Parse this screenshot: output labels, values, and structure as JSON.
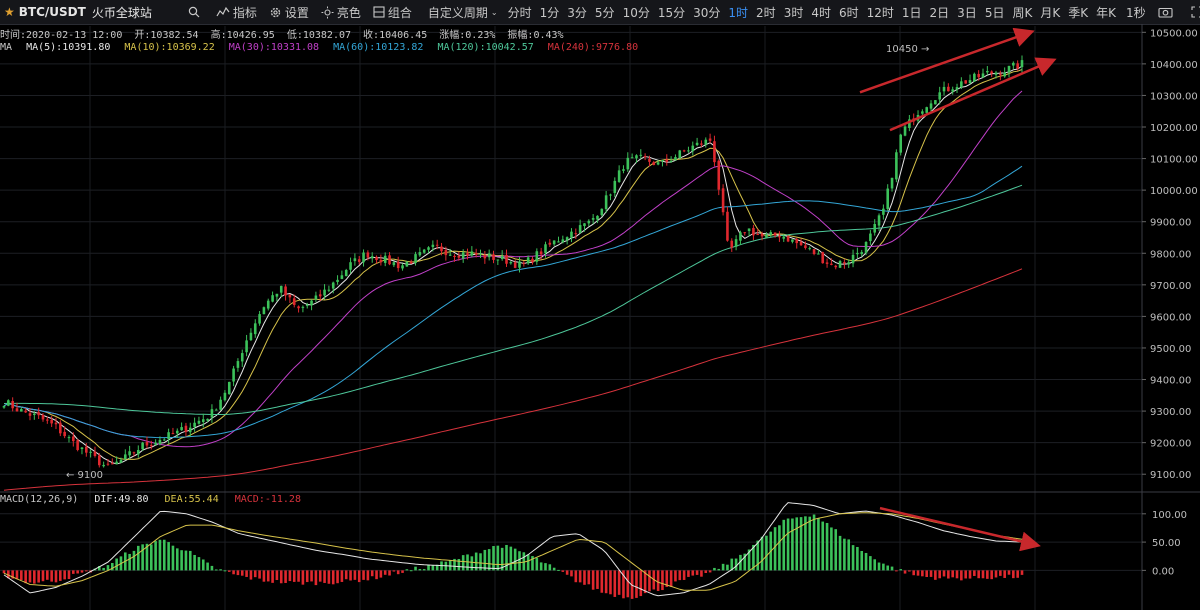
{
  "toolbar": {
    "symbol": "BTC/USDT",
    "exchange": "火币全球站",
    "indicators": "指标",
    "settings": "设置",
    "theme": "亮色",
    "combo": "组合",
    "custom_period": "自定义周期",
    "periods": [
      "分时",
      "1分",
      "3分",
      "5分",
      "10分",
      "15分",
      "30分",
      "1时",
      "2时",
      "3时",
      "4时",
      "6时",
      "12时",
      "1日",
      "2日",
      "3日",
      "5日",
      "周K",
      "月K",
      "季K",
      "年K"
    ],
    "active_period": "1时",
    "right_label": "1秒"
  },
  "ohlc": {
    "time": "时间:2020-02-13 12:00",
    "open": "开:10382.54",
    "high": "高:10426.95",
    "low": "低:10382.07",
    "close": "收:10406.45",
    "change": "涨幅:0.23%",
    "amplitude": "振幅:0.43%"
  },
  "ma_legend": {
    "prefix": "MA",
    "ma5": "MA(5):10391.80",
    "ma10": "MA(10):10369.22",
    "ma30": "MA(30):10331.08",
    "ma60": "MA(60):10123.82",
    "ma120": "MA(120):10042.57",
    "ma240": "MA(240):9776.80"
  },
  "macd_legend": {
    "name": "MACD(12,26,9)",
    "dif": "DIF:49.80",
    "dea": "DEA:55.44",
    "macd": "MACD:-11.28"
  },
  "colors": {
    "up": "#3cc15a",
    "down": "#e0282e",
    "ma5": "#e6e6e6",
    "ma10": "#d6c24a",
    "ma30": "#c040c8",
    "ma60": "#33a6d6",
    "ma120": "#4ec79a",
    "ma240": "#d6333c",
    "dif": "#e6e6e6",
    "dea": "#d6c24a",
    "arrow": "#c8282c"
  },
  "chart_data": [
    {
      "type": "candlestick",
      "title": "BTC/USDT",
      "x": "hourly candles",
      "ylim": [
        9050,
        10520
      ],
      "y_ticks": [
        9100,
        9200,
        9300,
        9400,
        9500,
        9600,
        9700,
        9800,
        9900,
        10000,
        10100,
        10200,
        10300,
        10400,
        10500
      ],
      "y_tick_labels": [
        "9100.00",
        "9200.00",
        "9300.00",
        "9400.00",
        "9500.00",
        "9600.00",
        "9700.00",
        "9800.00",
        "9900.00",
        "10000.00",
        "10100.00",
        "10200.00",
        "10300.00",
        "10400.00",
        "10500.00"
      ],
      "close_path": [
        9330,
        9300,
        9280,
        9250,
        9200,
        9160,
        9120,
        9150,
        9190,
        9210,
        9230,
        9260,
        9290,
        9380,
        9520,
        9630,
        9690,
        9620,
        9650,
        9700,
        9760,
        9800,
        9780,
        9760,
        9790,
        9820,
        9800,
        9800,
        9790,
        9780,
        9760,
        9800,
        9840,
        9870,
        9900,
        9980,
        10090,
        10100,
        10080,
        10110,
        10140,
        10160,
        9800,
        9880,
        9850,
        9860,
        9830,
        9800,
        9760,
        9780,
        9830,
        9940,
        10180,
        10250,
        10300,
        10330,
        10350,
        10370,
        10380,
        10400
      ],
      "annotations": [
        "10450",
        "9100"
      ],
      "grid": true
    },
    {
      "type": "bar",
      "title": "MACD(12,26,9)",
      "ylim": [
        -70,
        135
      ],
      "y_ticks": [
        0,
        50,
        100
      ],
      "y_tick_labels": [
        "0.00",
        "50.00",
        "100.00"
      ],
      "macd_path": [
        -8,
        -22,
        -18,
        -5,
        10,
        38,
        55,
        35,
        5,
        -10,
        -18,
        -22,
        -22,
        -20,
        -15,
        -5,
        5,
        15,
        30,
        45,
        30,
        5,
        -20,
        -40,
        -48,
        -35,
        -18,
        -5,
        20,
        55,
        90,
        100,
        65,
        30,
        5,
        -10,
        -14,
        -14,
        -12,
        -11
      ],
      "dif_path": [
        -8,
        -40,
        -30,
        -10,
        15,
        60,
        105,
        100,
        85,
        65,
        55,
        45,
        35,
        28,
        20,
        15,
        10,
        8,
        5,
        3,
        25,
        60,
        65,
        35,
        -25,
        -45,
        -40,
        -25,
        5,
        55,
        120,
        115,
        100,
        105,
        98,
        85,
        70,
        60,
        52,
        50
      ],
      "dea_path": [
        -5,
        -25,
        -28,
        -18,
        0,
        25,
        60,
        80,
        80,
        70,
        62,
        55,
        48,
        40,
        33,
        27,
        22,
        18,
        14,
        10,
        15,
        35,
        55,
        50,
        15,
        -20,
        -35,
        -35,
        -20,
        15,
        65,
        90,
        100,
        102,
        100,
        92,
        82,
        72,
        62,
        55
      ],
      "grid": true
    }
  ]
}
